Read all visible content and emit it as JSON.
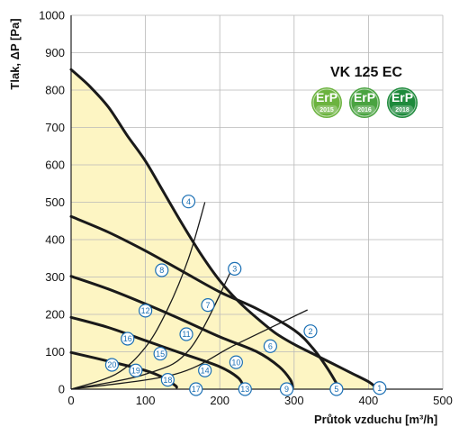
{
  "chart_data": {
    "type": "line",
    "title": "VK 125 EC",
    "xlabel": "Průtok vzduchu [m³/h]",
    "ylabel": "Tlak, ΔP [Pa]",
    "xlim": [
      0,
      500
    ],
    "ylim": [
      0,
      1000
    ],
    "x_ticks": [
      "0",
      "100",
      "200",
      "300",
      "400",
      "500"
    ],
    "y_ticks": [
      "0",
      "100",
      "200",
      "300",
      "400",
      "500",
      "600",
      "700",
      "800",
      "900",
      "1000"
    ],
    "grid": true,
    "badges": [
      {
        "label": "ErP",
        "year": "2015",
        "color": "#6cb33f"
      },
      {
        "label": "ErP",
        "year": "2016",
        "color": "#4aa341"
      },
      {
        "label": "ErP",
        "year": "2018",
        "color": "#1e8a3c"
      }
    ],
    "fan_curves": [
      {
        "points": [
          [
            0,
            855
          ],
          [
            25,
            810
          ],
          [
            50,
            755
          ],
          [
            75,
            680
          ],
          [
            100,
            610
          ],
          [
            125,
            525
          ],
          [
            150,
            440
          ],
          [
            175,
            360
          ],
          [
            200,
            290
          ],
          [
            225,
            235
          ],
          [
            250,
            190
          ],
          [
            275,
            150
          ],
          [
            300,
            120
          ],
          [
            325,
            95
          ],
          [
            350,
            70
          ],
          [
            375,
            45
          ],
          [
            400,
            20
          ],
          [
            410,
            5
          ]
        ]
      },
      {
        "points": [
          [
            0,
            462
          ],
          [
            50,
            420
          ],
          [
            100,
            370
          ],
          [
            150,
            315
          ],
          [
            200,
            260
          ],
          [
            250,
            215
          ],
          [
            300,
            158
          ],
          [
            325,
            110
          ],
          [
            345,
            55
          ],
          [
            360,
            5
          ]
        ]
      },
      {
        "points": [
          [
            0,
            302
          ],
          [
            50,
            268
          ],
          [
            100,
            228
          ],
          [
            150,
            185
          ],
          [
            200,
            140
          ],
          [
            250,
            100
          ],
          [
            280,
            60
          ],
          [
            295,
            25
          ],
          [
            298,
            5
          ]
        ]
      },
      {
        "points": [
          [
            0,
            192
          ],
          [
            50,
            165
          ],
          [
            100,
            130
          ],
          [
            150,
            95
          ],
          [
            200,
            60
          ],
          [
            225,
            30
          ],
          [
            232,
            5
          ]
        ]
      },
      {
        "points": [
          [
            0,
            98
          ],
          [
            50,
            75
          ],
          [
            100,
            50
          ],
          [
            125,
            30
          ],
          [
            140,
            10
          ],
          [
            142,
            5
          ]
        ]
      }
    ],
    "system_curves": [
      {
        "points": [
          [
            0,
            0
          ],
          [
            60,
            40
          ],
          [
            100,
            112
          ],
          [
            130,
            215
          ],
          [
            158,
            350
          ],
          [
            180,
            500
          ]
        ]
      },
      {
        "points": [
          [
            0,
            0
          ],
          [
            100,
            40
          ],
          [
            160,
            108
          ],
          [
            218,
            328
          ]
        ]
      },
      {
        "points": [
          [
            0,
            0
          ],
          [
            140,
            40
          ],
          [
            222,
            120
          ],
          [
            318,
            212
          ]
        ]
      }
    ],
    "markers": [
      {
        "label": "1",
        "x": 415,
        "y": 3
      },
      {
        "label": "2",
        "x": 322,
        "y": 155
      },
      {
        "label": "3",
        "x": 220,
        "y": 322
      },
      {
        "label": "4",
        "x": 158,
        "y": 502
      },
      {
        "label": "5",
        "x": 357,
        "y": 0
      },
      {
        "label": "6",
        "x": 268,
        "y": 115
      },
      {
        "label": "7",
        "x": 184,
        "y": 225
      },
      {
        "label": "8",
        "x": 122,
        "y": 318
      },
      {
        "label": "9",
        "x": 290,
        "y": 0
      },
      {
        "label": "10",
        "x": 222,
        "y": 72
      },
      {
        "label": "11",
        "x": 155,
        "y": 147
      },
      {
        "label": "12",
        "x": 100,
        "y": 210
      },
      {
        "label": "13",
        "x": 234,
        "y": 0
      },
      {
        "label": "14",
        "x": 180,
        "y": 50
      },
      {
        "label": "15",
        "x": 120,
        "y": 95
      },
      {
        "label": "16",
        "x": 76,
        "y": 135
      },
      {
        "label": "17",
        "x": 168,
        "y": 0
      },
      {
        "label": "18",
        "x": 130,
        "y": 25
      },
      {
        "label": "19",
        "x": 87,
        "y": 50
      },
      {
        "label": "20",
        "x": 55,
        "y": 65
      }
    ]
  }
}
